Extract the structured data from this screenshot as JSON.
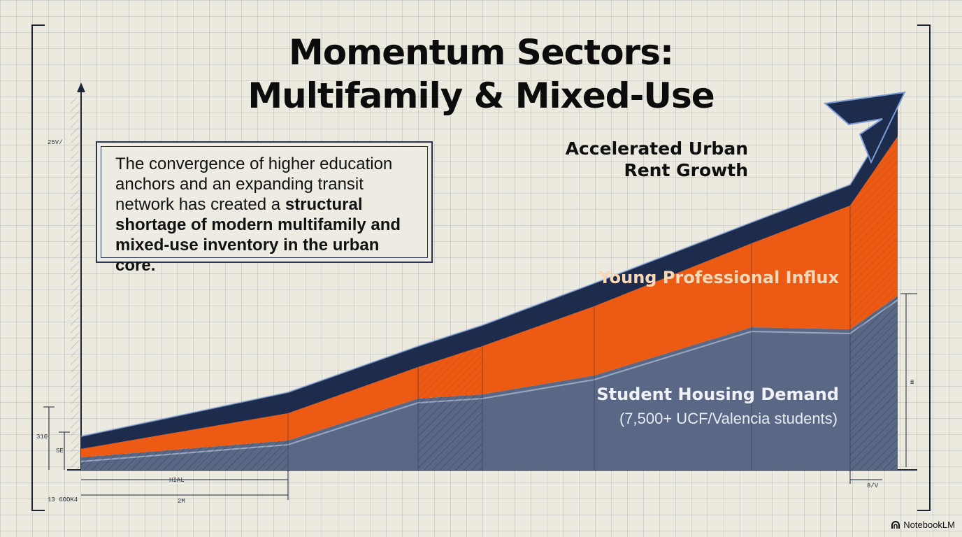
{
  "title_line1": "Momentum Sectors:",
  "title_line2": "Multifamily & Mixed-Use",
  "callout": {
    "plain": "The convergence of higher education anchors and an expanding transit network has created a ",
    "bold": "structural shortage of modern multifamily and mixed-use inventory in the urban core."
  },
  "chart_data": {
    "type": "area",
    "stacked": true,
    "x": [
      0,
      1,
      2,
      3,
      4,
      5,
      6,
      7
    ],
    "series": [
      {
        "name": "Student Housing Demand",
        "values": [
          0.6,
          1.4,
          3.4,
          3.6,
          4.5,
          6.8,
          6.7,
          8.3
        ]
      },
      {
        "name": "Young Professional Influx",
        "values": [
          0.4,
          1.3,
          1.5,
          2.3,
          3.3,
          4.0,
          5.9,
          7.6
        ]
      },
      {
        "name": "Accelerated Urban Rent Growth",
        "values": [
          0.6,
          1.0,
          1.0,
          1.0,
          1.1,
          1.0,
          1.0,
          1.4
        ]
      }
    ],
    "ylim": [
      0,
      18
    ],
    "accent_colors": {
      "student": "#5a6886",
      "young": "#ec5a14",
      "rent": "#1d2c4c"
    }
  },
  "labels": {
    "rent_line1": "Accelerated Urban",
    "rent_line2": "Rent Growth",
    "young": "Young Professional Influx",
    "student": "Student Housing Demand",
    "student_sub": "(7,500+ UCF/Valencia students)"
  },
  "marks": {
    "axis_top": "25V/",
    "dim_h1": "HIAL",
    "dim_h2": "2M",
    "dim_right": "8/V",
    "left_a": "310",
    "left_b": "SE",
    "bottom_left": "13 6OOK4",
    "right_mid": "≣"
  },
  "brand": "NotebookLM"
}
